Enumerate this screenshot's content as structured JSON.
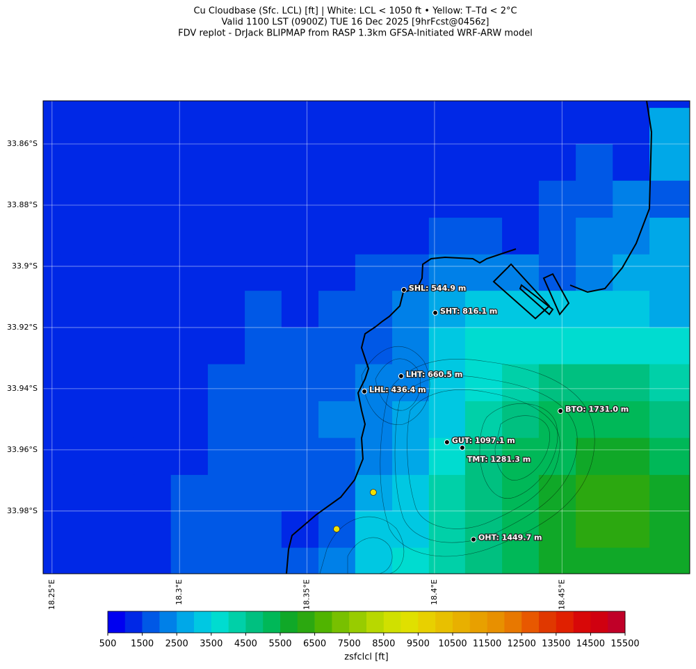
{
  "chart_data": {
    "type": "heatmap",
    "title": [
      "Cu Cloudbase (Sfc. LCL) [ft]  |  White: LCL < 1050 ft • Yellow: T–Td < 2°C",
      "Valid 1100 LST (0900Z) TUE 16 Dec 2025 [9hrFcst@0456z]",
      "FDV replot - DrJack BLIPMAP from RASP 1.3km GFSA-Initiated WRF-ARW model"
    ],
    "xlim": [
      18.2465,
      18.5001
    ],
    "ylim": [
      33.8459,
      34.0005
    ],
    "xticks": [
      {
        "value": 18.25,
        "label": "18.25°E"
      },
      {
        "value": 18.3,
        "label": "18.3°E"
      },
      {
        "value": 18.35,
        "label": "18.35°E"
      },
      {
        "value": 18.4,
        "label": "18.4°E"
      },
      {
        "value": 18.45,
        "label": "18.45°E"
      }
    ],
    "yticks": [
      {
        "value": 33.86,
        "label": "33.86°S"
      },
      {
        "value": 33.88,
        "label": "33.88°S"
      },
      {
        "value": 33.9,
        "label": "33.9°S"
      },
      {
        "value": 33.92,
        "label": "33.92°S"
      },
      {
        "value": 33.94,
        "label": "33.94°S"
      },
      {
        "value": 33.96,
        "label": "33.96°S"
      },
      {
        "value": 33.98,
        "label": "33.98°S"
      }
    ],
    "grid": true,
    "field": {
      "lon_edges": [
        18.2465,
        18.2533,
        18.2677,
        18.2822,
        18.2966,
        18.3111,
        18.3256,
        18.34,
        18.3545,
        18.3689,
        18.3834,
        18.3978,
        18.412,
        18.4265,
        18.4409,
        18.4554,
        18.4699,
        18.4843,
        18.5001
      ],
      "lat_edges": [
        33.8459,
        33.8482,
        33.86,
        33.872,
        33.8841,
        33.8961,
        33.908,
        33.92,
        33.932,
        33.9441,
        33.9561,
        33.9682,
        33.98,
        33.992,
        34.0005
      ],
      "values": [
        [
          1250,
          1250,
          1250,
          1250,
          1250,
          1250,
          1250,
          1250,
          1250,
          1250,
          1250,
          1250,
          1250,
          1250,
          1250,
          1250,
          1250,
          1250
        ],
        [
          1250,
          1250,
          1250,
          1250,
          1250,
          1250,
          1250,
          1250,
          1250,
          1250,
          1250,
          1250,
          1250,
          1250,
          1250,
          1250,
          1250,
          2750
        ],
        [
          1250,
          1250,
          1250,
          1250,
          1250,
          1250,
          1250,
          1250,
          1250,
          1250,
          1250,
          1250,
          1250,
          1250,
          1250,
          1750,
          1250,
          2750
        ],
        [
          1250,
          1250,
          1250,
          1250,
          1250,
          1250,
          1250,
          1250,
          1250,
          1250,
          1250,
          1250,
          1250,
          1250,
          1750,
          1750,
          2250,
          1750
        ],
        [
          1250,
          1250,
          1250,
          1250,
          1250,
          1250,
          1250,
          1250,
          1250,
          1250,
          1250,
          1750,
          1750,
          1250,
          1750,
          2250,
          2250,
          2750
        ],
        [
          1250,
          1250,
          1250,
          1250,
          1250,
          1250,
          1250,
          1250,
          1250,
          1750,
          1750,
          2250,
          2250,
          2250,
          1750,
          2250,
          2750,
          2750
        ],
        [
          1250,
          1250,
          1250,
          1250,
          1250,
          1250,
          1750,
          1250,
          1750,
          1750,
          2250,
          2750,
          3250,
          3250,
          3250,
          3250,
          3250,
          2750
        ],
        [
          1250,
          1250,
          1250,
          1250,
          1250,
          1250,
          1750,
          1750,
          1750,
          1750,
          2250,
          3250,
          3750,
          3750,
          3750,
          3750,
          3750,
          3750
        ],
        [
          1250,
          1250,
          1250,
          1250,
          1250,
          1750,
          1750,
          1750,
          1750,
          2250,
          2250,
          3250,
          3750,
          4250,
          4750,
          4750,
          4750,
          4250
        ],
        [
          1250,
          1250,
          1250,
          1250,
          1250,
          1750,
          1750,
          1750,
          2250,
          2250,
          2750,
          3250,
          4250,
          4750,
          5250,
          5250,
          5250,
          4750
        ],
        [
          1250,
          1250,
          1250,
          1250,
          1250,
          1750,
          1750,
          1750,
          1750,
          2250,
          2750,
          3750,
          4750,
          5250,
          5250,
          5750,
          5750,
          5250
        ],
        [
          1250,
          1250,
          1250,
          1250,
          1750,
          1750,
          1750,
          1750,
          1750,
          2750,
          3250,
          4250,
          4750,
          5250,
          5750,
          6250,
          6250,
          5750
        ],
        [
          1250,
          1250,
          1250,
          1250,
          1750,
          1750,
          1750,
          1250,
          1750,
          3250,
          3250,
          4250,
          4750,
          5250,
          5750,
          6250,
          6250,
          5750
        ],
        [
          1250,
          1250,
          1250,
          1250,
          1750,
          1750,
          1750,
          1750,
          2250,
          3250,
          3750,
          4250,
          4750,
          5250,
          5750,
          5750,
          5750,
          5750
        ]
      ]
    },
    "stations": [
      {
        "label": "SHL: 544.9 m",
        "lon": 18.388,
        "lat": 33.9077
      },
      {
        "label": "SHT: 816.1 m",
        "lon": 18.4003,
        "lat": 33.9152
      },
      {
        "label": "LHT: 660.5 m",
        "lon": 18.3869,
        "lat": 33.9359
      },
      {
        "label": "LHL: 436.4 m",
        "lon": 18.3725,
        "lat": 33.9409
      },
      {
        "label": "BTO: 1731.0 m",
        "lon": 18.4494,
        "lat": 33.9473
      },
      {
        "label": "GUT: 1097.1 m",
        "lon": 18.4049,
        "lat": 33.9575
      },
      {
        "label": "TMT: 1281.3 m",
        "lon": 18.4109,
        "lat": 33.9593
      },
      {
        "label": "OHT: 1449.7 m",
        "lon": 18.4153,
        "lat": 33.9893
      }
    ],
    "yellow_points": {
      "color": "#f0e000",
      "lon": [
        18.376,
        18.3616
      ],
      "lat": [
        33.9739,
        33.9859
      ]
    },
    "colorbar": {
      "label": "zsfclcl [ft]",
      "levels": [
        500,
        1000,
        1500,
        2000,
        2500,
        3000,
        3500,
        4000,
        4500,
        5000,
        5500,
        6000,
        6500,
        7000,
        7500,
        8000,
        8500,
        9000,
        9500,
        10000,
        10500,
        11000,
        11500,
        12000,
        12500,
        13000,
        13500,
        14000,
        14500,
        15000,
        15500
      ],
      "colors": [
        "#0000f0",
        "#0028e6",
        "#0058e6",
        "#0080e8",
        "#00a8e8",
        "#00c8e2",
        "#00dcd0",
        "#00d0a8",
        "#00c080",
        "#00b858",
        "#10a828",
        "#2ca810",
        "#50b400",
        "#78c000",
        "#98cc00",
        "#b8d800",
        "#d0e000",
        "#e0e000",
        "#e8d000",
        "#e8c000",
        "#e8b000",
        "#e8a000",
        "#e89000",
        "#e87800",
        "#e85800",
        "#e03800",
        "#e02000",
        "#d80808",
        "#d00010",
        "#c00028"
      ],
      "ticks": [
        500,
        1500,
        2500,
        3500,
        4500,
        5500,
        6500,
        7500,
        8500,
        9500,
        10500,
        11500,
        12500,
        13500,
        14500,
        15500
      ]
    }
  }
}
